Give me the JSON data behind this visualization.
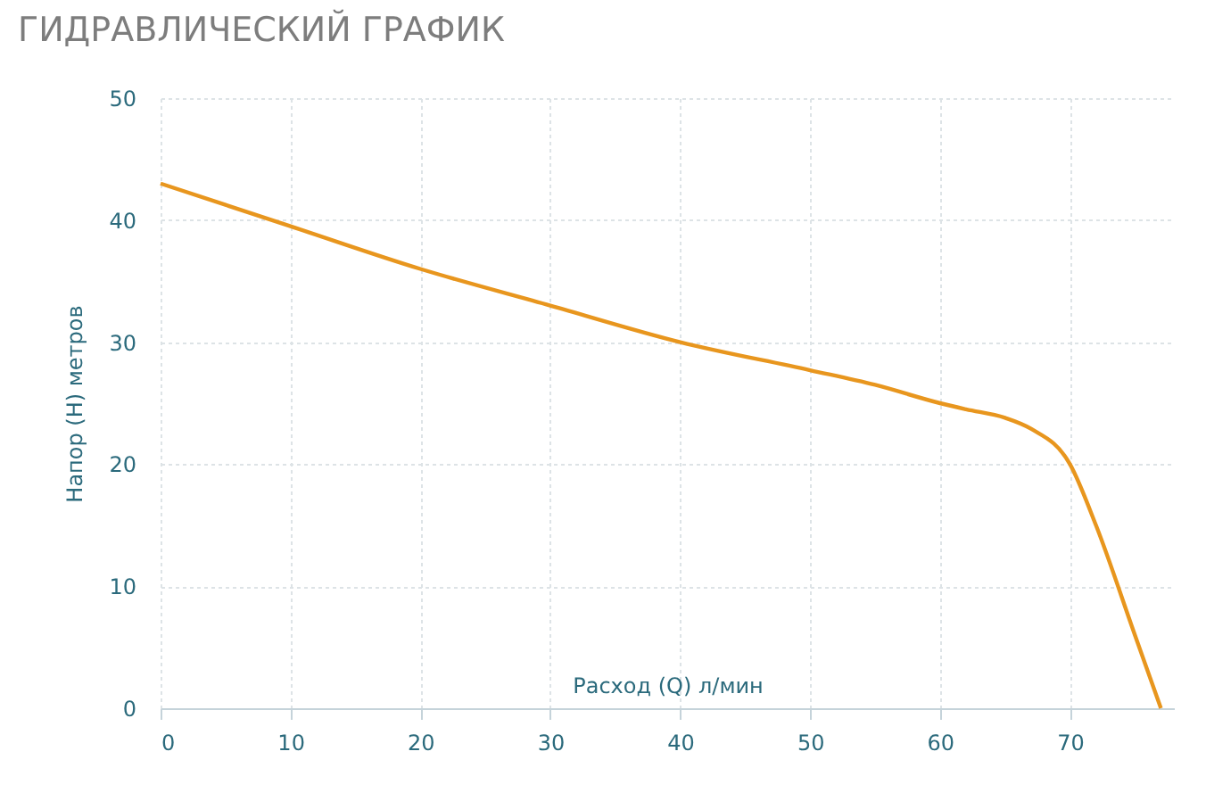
{
  "chart_data": {
    "type": "line",
    "title": "ГИДРАВЛИЧЕСКИЙ ГРАФИК",
    "xlabel": "Расход (Q) л/мин",
    "ylabel": "Напор (H) метров",
    "x": [
      0,
      10,
      20,
      30,
      40,
      50,
      55,
      60,
      62,
      65,
      67,
      70,
      72,
      75,
      77
    ],
    "series": [
      {
        "color": "#e8961e",
        "values": [
          43,
          39.5,
          36,
          33,
          30,
          27.7,
          26.5,
          25,
          24.5,
          23.8,
          22.9,
          20,
          15,
          6,
          0
        ]
      }
    ],
    "xlim": [
      0,
      78
    ],
    "xticks": [
      0,
      10,
      20,
      30,
      40,
      50,
      60,
      70
    ],
    "ylim": [
      0,
      50
    ],
    "yticks": [
      0,
      10,
      20,
      30,
      40,
      50
    ],
    "grid": true,
    "marker": "none",
    "line_style": "solid"
  }
}
